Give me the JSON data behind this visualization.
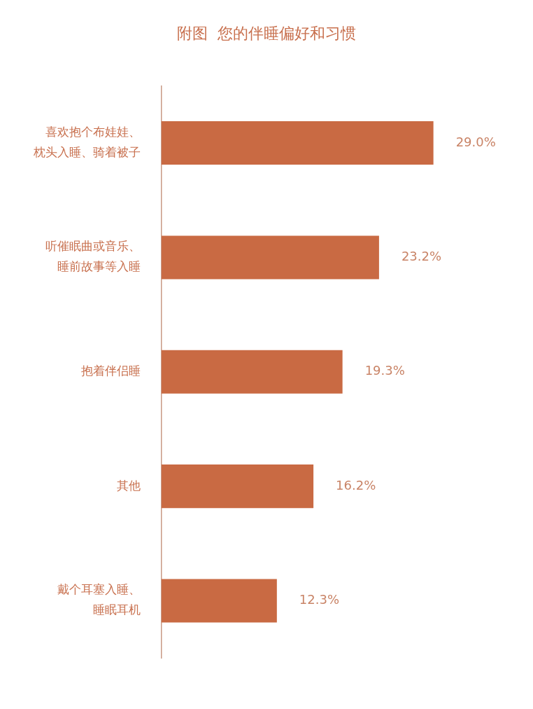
{
  "chart_data": {
    "type": "bar",
    "orientation": "horizontal",
    "title": "附图  您的伴睡偏好和习惯",
    "categories": [
      "喜欢抱个布娃娃、枕头入睡、骑着被子",
      "听催眠曲或音乐、睡前故事等入睡",
      "抱着伴侣睡",
      "其他",
      "戴个耳塞入睡、睡眠耳机"
    ],
    "values": [
      29.0,
      23.2,
      19.3,
      16.2,
      12.3
    ],
    "value_labels": [
      "29.0%",
      "23.2%",
      "19.3%",
      "16.2%",
      "12.3%"
    ],
    "color": "#c96a43",
    "grid": false,
    "legend": false
  }
}
